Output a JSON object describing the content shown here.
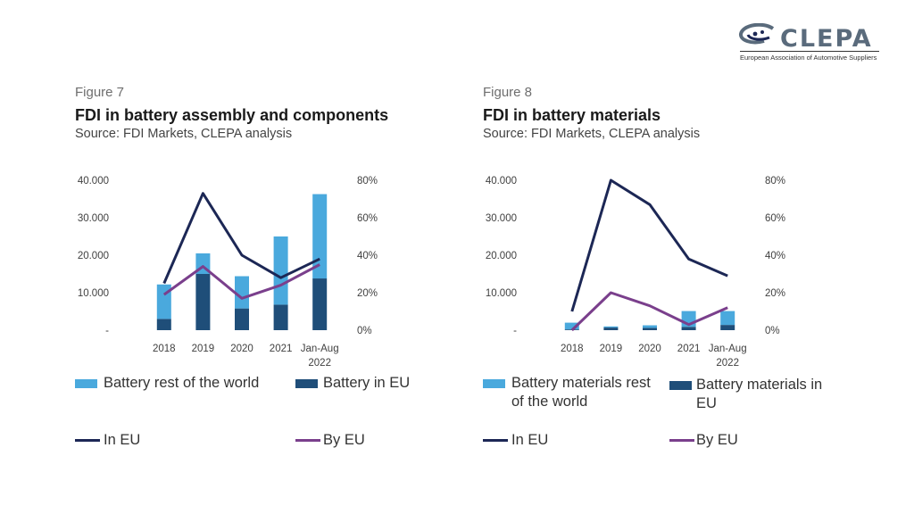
{
  "logo": {
    "name": "CLEPA",
    "tagline": "European Association of Automotive Suppliers"
  },
  "colors": {
    "rest_world": "#4aa9dd",
    "eu": "#1f4e79",
    "in_eu": "#1c2755",
    "by_eu": "#7a3f8c"
  },
  "figures": [
    {
      "number": "Figure 7",
      "title": "FDI in battery assembly and components",
      "source": "Source: FDI Markets, CLEPA analysis",
      "legend": {
        "rest": "Battery rest of the world",
        "eu": "Battery in EU",
        "in_eu": "In EU",
        "by_eu": "By EU"
      }
    },
    {
      "number": "Figure 8",
      "title": "FDI in battery materials",
      "source": "Source: FDI Markets, CLEPA analysis",
      "legend": {
        "rest": "Battery materials rest of the world",
        "eu": "Battery materials in EU",
        "in_eu": "In EU",
        "by_eu": "By EU"
      }
    }
  ],
  "chart_data": [
    {
      "type": "bar",
      "categories": [
        "2018",
        "2019",
        "2020",
        "2021",
        "Jan-Aug 2022"
      ],
      "y_left": {
        "ticks": [
          "-",
          "10.000",
          "20.000",
          "30.000",
          "40.000"
        ],
        "range": [
          0,
          40000
        ]
      },
      "y_right": {
        "ticks": [
          "0%",
          "20%",
          "40%",
          "60%",
          "80%"
        ],
        "range": [
          0,
          80
        ]
      },
      "stacked_bars": [
        {
          "name": "Battery in EU",
          "values": [
            3000,
            15000,
            5800,
            6800,
            13800
          ]
        },
        {
          "name": "Battery rest of the world",
          "values": [
            9200,
            5500,
            8600,
            18200,
            22500
          ]
        }
      ],
      "lines": [
        {
          "name": "In EU",
          "axis": "right",
          "values": [
            25,
            73,
            40,
            28,
            38
          ]
        },
        {
          "name": "By EU",
          "axis": "right",
          "values": [
            19,
            34,
            17,
            24,
            35
          ]
        }
      ]
    },
    {
      "type": "bar",
      "categories": [
        "2018",
        "2019",
        "2020",
        "2021",
        "Jan-Aug 2022"
      ],
      "y_left": {
        "ticks": [
          "-",
          "10.000",
          "20.000",
          "30.000",
          "40.000"
        ],
        "range": [
          0,
          40000
        ]
      },
      "y_right": {
        "ticks": [
          "0%",
          "20%",
          "40%",
          "60%",
          "80%"
        ],
        "range": [
          0,
          80
        ]
      },
      "stacked_bars": [
        {
          "name": "Battery materials in EU",
          "values": [
            200,
            700,
            600,
            900,
            1400
          ]
        },
        {
          "name": "Battery materials rest of the world",
          "values": [
            1800,
            300,
            700,
            4200,
            3700
          ]
        }
      ],
      "lines": [
        {
          "name": "In EU",
          "axis": "right",
          "values": [
            10,
            80,
            67,
            38,
            29
          ]
        },
        {
          "name": "By EU",
          "axis": "right",
          "values": [
            0,
            20,
            13,
            3,
            12
          ]
        }
      ]
    }
  ]
}
